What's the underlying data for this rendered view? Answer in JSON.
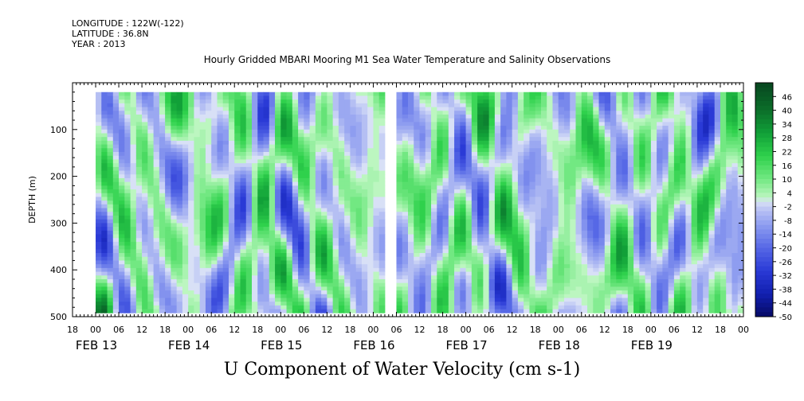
{
  "header": {
    "longitude": "LONGITUDE : 122W(-122)",
    "latitude": "LATITUDE : 36.8N",
    "year": "YEAR : 2013"
  },
  "chart_data": {
    "type": "heatmap",
    "title": "Hourly Gridded MBARI Mooring M1 Sea Water Temperature and Salinity Observations",
    "variable": "U Component of Water Velocity (cm s-1)",
    "ylabel": "DEPTH (m)",
    "ylim": [
      500,
      0
    ],
    "y_direction": "down",
    "data_depth_range": [
      20,
      485
    ],
    "yticks": [
      100,
      200,
      300,
      400,
      500
    ],
    "x_start_hours": -6,
    "x_end_hours": 168,
    "data_time_range_hours": [
      0,
      168
    ],
    "x_hour_ticks": [
      {
        "h": -6,
        "label": "18"
      },
      {
        "h": 0,
        "label": "00"
      },
      {
        "h": 6,
        "label": "06"
      },
      {
        "h": 12,
        "label": "12"
      },
      {
        "h": 18,
        "label": "18"
      },
      {
        "h": 24,
        "label": "00"
      },
      {
        "h": 30,
        "label": "06"
      },
      {
        "h": 36,
        "label": "12"
      },
      {
        "h": 42,
        "label": "18"
      },
      {
        "h": 48,
        "label": "00"
      },
      {
        "h": 54,
        "label": "06"
      },
      {
        "h": 60,
        "label": "12"
      },
      {
        "h": 66,
        "label": "18"
      },
      {
        "h": 72,
        "label": "00"
      },
      {
        "h": 78,
        "label": "06"
      },
      {
        "h": 84,
        "label": "12"
      },
      {
        "h": 90,
        "label": "18"
      },
      {
        "h": 96,
        "label": "00"
      },
      {
        "h": 102,
        "label": "06"
      },
      {
        "h": 108,
        "label": "12"
      },
      {
        "h": 114,
        "label": "18"
      },
      {
        "h": 120,
        "label": "00"
      },
      {
        "h": 126,
        "label": "06"
      },
      {
        "h": 132,
        "label": "12"
      },
      {
        "h": 138,
        "label": "18"
      },
      {
        "h": 144,
        "label": "00"
      },
      {
        "h": 150,
        "label": "06"
      },
      {
        "h": 156,
        "label": "12"
      },
      {
        "h": 162,
        "label": "18"
      },
      {
        "h": 168,
        "label": "00"
      }
    ],
    "x_day_labels": [
      {
        "h": 0,
        "label": "FEB 13"
      },
      {
        "h": 24,
        "label": "FEB 14"
      },
      {
        "h": 48,
        "label": "FEB 15"
      },
      {
        "h": 72,
        "label": "FEB 16"
      },
      {
        "h": 96,
        "label": "FEB 17"
      },
      {
        "h": 120,
        "label": "FEB 18"
      },
      {
        "h": 144,
        "label": "FEB 19"
      }
    ],
    "colorbar": {
      "levels": [
        46,
        40,
        34,
        28,
        22,
        16,
        10,
        4,
        -2,
        -8,
        -14,
        -20,
        -26,
        -32,
        -38,
        -44,
        -50
      ],
      "range": [
        -50,
        52
      ],
      "step": 2,
      "colors": [
        {
          "v": 52,
          "c": "#07461f"
        },
        {
          "v": 40,
          "c": "#0b6e2a"
        },
        {
          "v": 30,
          "c": "#11a038"
        },
        {
          "v": 20,
          "c": "#2fd14c"
        },
        {
          "v": 10,
          "c": "#72e882"
        },
        {
          "v": 2,
          "c": "#bcf6c0"
        },
        {
          "v": 0,
          "c": "#d8e0f6"
        },
        {
          "v": -4,
          "c": "#b5bff3"
        },
        {
          "v": -10,
          "c": "#8e9df0"
        },
        {
          "v": -20,
          "c": "#5668e6"
        },
        {
          "v": -30,
          "c": "#2a3ad6"
        },
        {
          "v": -40,
          "c": "#1220b0"
        },
        {
          "v": -50,
          "c": "#060a66"
        }
      ]
    },
    "missing_data_hours": [
      75.5,
      77.5
    ],
    "typical_range": [
      -22,
      24
    ]
  }
}
